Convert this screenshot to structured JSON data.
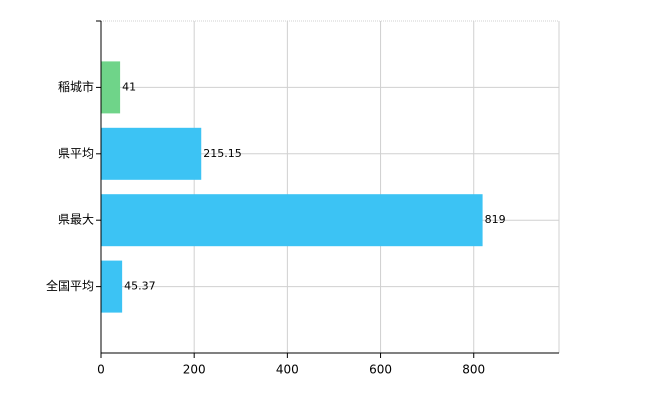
{
  "chart_data": {
    "type": "barh",
    "categories": [
      "稲城市",
      "県平均",
      "県最大",
      "全国平均"
    ],
    "values": [
      41,
      215.15,
      819,
      45.37
    ],
    "colors": [
      "#6fd489",
      "#3cc3f4",
      "#3cc3f4",
      "#3cc3f4"
    ],
    "xlim": [
      0,
      983
    ],
    "xticks": [
      0,
      200,
      400,
      600,
      800
    ],
    "grid": true
  }
}
